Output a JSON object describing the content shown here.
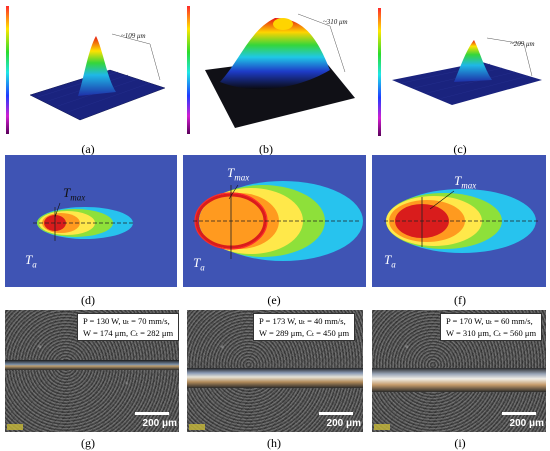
{
  "panels": {
    "a": {
      "caption": "(a)",
      "dimension": "~109 μm"
    },
    "b": {
      "caption": "(b)",
      "dimension": "~310 μm"
    },
    "c": {
      "caption": "(c)",
      "dimension": "~209 μm"
    },
    "d": {
      "caption": "(d)",
      "tmax": "T",
      "tmax_sub": "max",
      "ta": "T",
      "ta_sub": "a"
    },
    "e": {
      "caption": "(e)",
      "tmax": "T",
      "tmax_sub": "max",
      "ta": "T",
      "ta_sub": "a"
    },
    "f": {
      "caption": "(f)",
      "tmax": "T",
      "tmax_sub": "max",
      "ta": "T",
      "ta_sub": "a"
    },
    "g": {
      "caption": "(g)",
      "line1": "P = 130 W, uₜ = 70 mm/s,",
      "line2": "W = 174 μm, Cₜ = 282 μm",
      "scale": "200 μm"
    },
    "h": {
      "caption": "(h)",
      "line1": "P = 173 W, uₜ = 40 mm/s,",
      "line2": "W = 289 μm, Cₜ = 450 μm",
      "scale": "200 μm"
    },
    "i": {
      "caption": "(i)",
      "line1": "P = 170 W, uₜ = 60 mm/s,",
      "line2": "W = 310 μm, Cₜ = 560 μm",
      "scale": "200 μm"
    }
  },
  "colors": {
    "thermal_background": "#3f54b4",
    "cyan": "#27c3ee",
    "green": "#8ee03a",
    "yellow": "#ffe84a",
    "orange": "#ff9a1f",
    "red": "#d91c1c"
  }
}
